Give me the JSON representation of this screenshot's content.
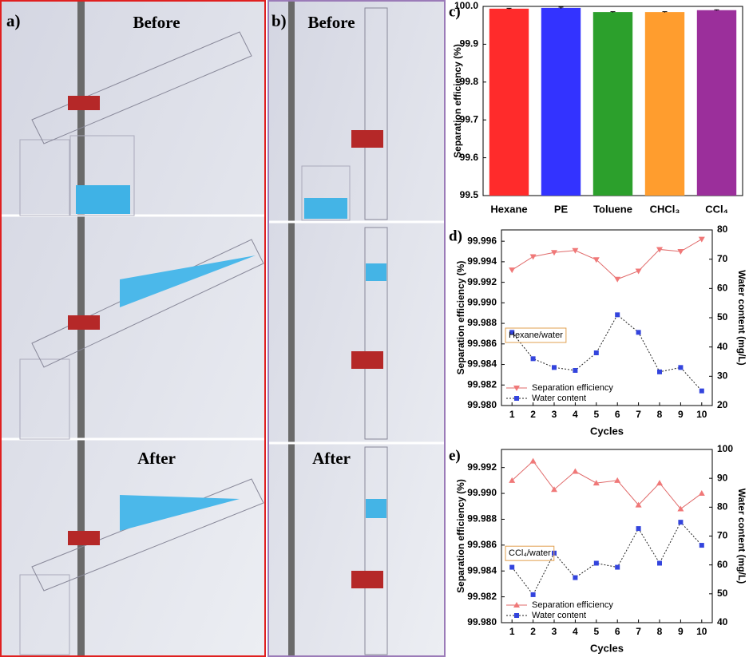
{
  "photos": {
    "a": {
      "label": "a)",
      "before": "Before",
      "after": "After"
    },
    "b": {
      "label": "b)",
      "before": "Before",
      "after": "After"
    }
  },
  "chart_data": [
    {
      "type": "bar",
      "panel_label": "c)",
      "ylabel": "Separation efficiency (%)",
      "categories": [
        "Hexane",
        "PE",
        "Toluene",
        "CHCl₃",
        "CCl₄"
      ],
      "values": [
        99.994,
        99.996,
        99.985,
        99.985,
        99.99
      ],
      "errors": [
        0.001,
        0.002,
        0.001,
        0.001,
        0.001
      ],
      "colors": [
        "#ff2b2b",
        "#3333ff",
        "#2ca02c",
        "#ff9d2e",
        "#9b2f9b"
      ],
      "ylim": [
        99.5,
        100.0
      ],
      "yticks": [
        99.5,
        99.6,
        99.7,
        99.8,
        99.9,
        {
          "value": 100,
          "label": "100.0"
        }
      ]
    },
    {
      "type": "line",
      "panel_label": "d)",
      "ylabel": "Separation efficiency (%)",
      "y2label": "Water content (mg/L)",
      "xlabel": "Cycles",
      "annotation": "Hexane/water",
      "legend": "lower left",
      "x": [
        1,
        2,
        3,
        4,
        5,
        6,
        7,
        8,
        9,
        10
      ],
      "series": [
        {
          "name": "Separation efficiency",
          "color": "#f07878",
          "line_color": "#e06a6a",
          "linestyle": "solid",
          "marker": "triangle-down",
          "values": [
            99.9932,
            99.9945,
            99.9949,
            99.9951,
            99.9942,
            99.9923,
            99.9931,
            99.9952,
            99.995,
            99.9962
          ]
        },
        {
          "name": "Water content",
          "color": "#3344dd",
          "line_color": "#222222",
          "linestyle": "dotted",
          "marker": "square",
          "axis": "y2",
          "values": [
            45,
            36,
            33,
            32,
            38,
            51,
            45,
            31.5,
            33,
            25
          ]
        }
      ],
      "xlim": [
        0.5,
        10.5
      ],
      "xticks": [
        1,
        2,
        3,
        4,
        5,
        6,
        7,
        8,
        9,
        10
      ],
      "ylim": [
        99.98,
        99.9971
      ],
      "yticks": [
        {
          "value": 99.98,
          "label": "99.980"
        },
        99.982,
        99.984,
        99.986,
        99.988,
        {
          "value": 99.99,
          "label": "99.990"
        },
        99.992,
        99.994,
        99.996
      ],
      "y2lim": [
        20,
        80
      ],
      "y2ticks": [
        20,
        30,
        40,
        50,
        60,
        70,
        80
      ]
    },
    {
      "type": "line",
      "panel_label": "e)",
      "ylabel": "Separation efficiency (%)",
      "y2label": "Water content (mg/L)",
      "xlabel": "Cycles",
      "annotation": "CCl₄/water",
      "legend": "lower left",
      "x": [
        1,
        2,
        3,
        4,
        5,
        6,
        7,
        8,
        9,
        10
      ],
      "series": [
        {
          "name": "Separation efficiency",
          "color": "#f07878",
          "line_color": "#e06a6a",
          "linestyle": "solid",
          "marker": "triangle-up",
          "values": [
            99.991,
            99.9925,
            99.9903,
            99.9917,
            99.9908,
            99.991,
            99.9891,
            99.9908,
            99.9888,
            99.99
          ]
        },
        {
          "name": "Water content",
          "color": "#3344dd",
          "line_color": "#222222",
          "linestyle": "dotted",
          "marker": "square",
          "axis": "y2",
          "values": [
            59.2,
            49.7,
            64.1,
            55.6,
            60.6,
            59.2,
            72.6,
            60.6,
            74.8,
            66.8
          ]
        }
      ],
      "xlim": [
        0.5,
        10.5
      ],
      "xticks": [
        1,
        2,
        3,
        4,
        5,
        6,
        7,
        8,
        9,
        10
      ],
      "ylim": [
        99.98,
        99.9934
      ],
      "yticks": [
        {
          "value": 99.98,
          "label": "99.980"
        },
        99.982,
        99.984,
        99.986,
        99.988,
        {
          "value": 99.99,
          "label": "99.990"
        },
        99.992
      ],
      "y2lim": [
        40,
        100
      ],
      "y2ticks": [
        40,
        50,
        60,
        70,
        80,
        90,
        100
      ]
    }
  ]
}
